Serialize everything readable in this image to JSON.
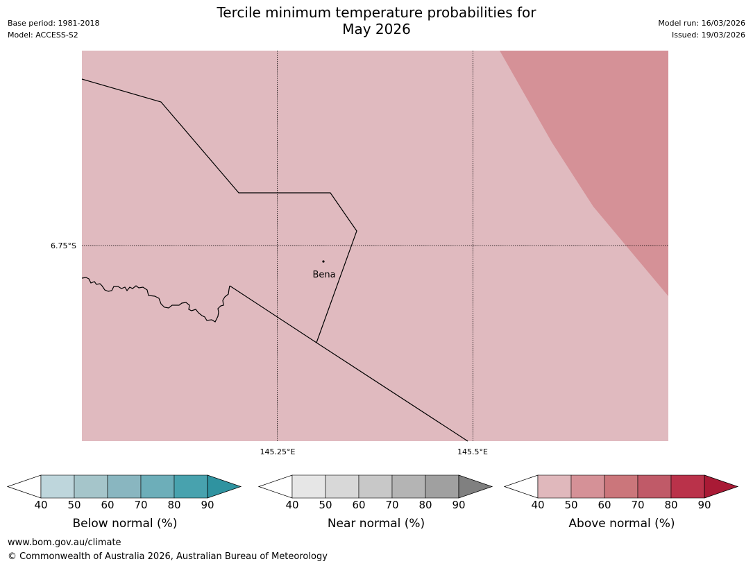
{
  "header": {
    "title_line1": "Tercile minimum temperature probabilities for",
    "title_line2": "May 2026",
    "base_period": "Base period: 1981-2018",
    "model": "Model: ACCESS-S2",
    "model_run": "Model run: 16/03/2026",
    "issued": "Issued: 19/03/2026"
  },
  "map": {
    "latitude_label": "6.75°S",
    "longitude_labels": [
      "145.25°E",
      "145.5°E"
    ],
    "place": "Bena",
    "colors": {
      "background_band": "#e0babf",
      "upper_band": "#d59197",
      "boundary": "#000000"
    }
  },
  "colorbars": [
    {
      "label": "Below normal (%)",
      "ticks": [
        "40",
        "50",
        "60",
        "70",
        "80",
        "90"
      ],
      "colors": [
        "#bed6dc",
        "#a5c5ca",
        "#89b6c0",
        "#6daeb9",
        "#48a2ae",
        "#2f93a0"
      ]
    },
    {
      "label": "Near normal (%)",
      "ticks": [
        "40",
        "50",
        "60",
        "70",
        "80",
        "90"
      ],
      "colors": [
        "#e6e6e6",
        "#d8d8d8",
        "#c8c8c8",
        "#b4b4b4",
        "#a0a0a0",
        "#808080"
      ]
    },
    {
      "label": "Above normal (%)",
      "ticks": [
        "40",
        "50",
        "60",
        "70",
        "80",
        "90"
      ],
      "colors": [
        "#e0b8bc",
        "#d59197",
        "#cb767b",
        "#c05a68",
        "#ba324a",
        "#a91a35"
      ]
    }
  ],
  "footer": {
    "url": "www.bom.gov.au/climate",
    "copyright": "© Commonwealth of Australia 2026, Australian Bureau of Meteorology"
  }
}
